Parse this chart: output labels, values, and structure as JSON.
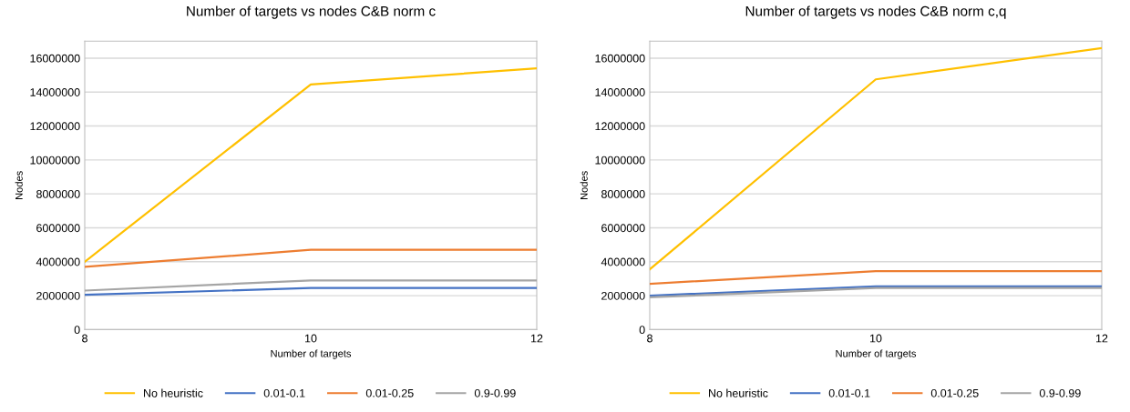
{
  "chart_data": [
    {
      "type": "line",
      "title": "Number of targets vs nodes C&B norm c",
      "xlabel": "Number of targets",
      "ylabel": "Nodes",
      "x": [
        8,
        10,
        12
      ],
      "xlim": [
        8,
        12
      ],
      "xticks": [
        8,
        10,
        12
      ],
      "ylim": [
        0,
        17000000
      ],
      "yticks": [
        0,
        2000000,
        4000000,
        6000000,
        8000000,
        10000000,
        12000000,
        14000000,
        16000000
      ],
      "grid": "y",
      "legend": "bottom",
      "marker": "none",
      "series": [
        {
          "name": "No heuristic",
          "color": "#ffc000",
          "values": [
            4000000,
            14450000,
            15400000
          ]
        },
        {
          "name": "0.01-0.1",
          "color": "#4472c4",
          "values": [
            2050000,
            2450000,
            2450000
          ]
        },
        {
          "name": "0.01-0.25",
          "color": "#ed7d31",
          "values": [
            3700000,
            4700000,
            4700000
          ]
        },
        {
          "name": "0.9-0.99",
          "color": "#a5a5a5",
          "values": [
            2300000,
            2900000,
            2900000
          ]
        }
      ]
    },
    {
      "type": "line",
      "title": "Number of targets vs nodes C&B norm c,q",
      "xlabel": "Number of targets",
      "ylabel": "Nodes",
      "x": [
        8,
        10,
        12
      ],
      "xlim": [
        8,
        12
      ],
      "xticks": [
        8,
        10,
        12
      ],
      "ylim": [
        0,
        17000000
      ],
      "yticks": [
        0,
        2000000,
        4000000,
        6000000,
        8000000,
        10000000,
        12000000,
        14000000,
        16000000
      ],
      "grid": "y",
      "legend": "bottom",
      "marker": "none",
      "series": [
        {
          "name": "No heuristic",
          "color": "#ffc000",
          "values": [
            3550000,
            14750000,
            16600000
          ]
        },
        {
          "name": "0.01-0.1",
          "color": "#4472c4",
          "values": [
            2000000,
            2550000,
            2550000
          ]
        },
        {
          "name": "0.01-0.25",
          "color": "#ed7d31",
          "values": [
            2700000,
            3450000,
            3450000
          ]
        },
        {
          "name": "0.9-0.99",
          "color": "#a5a5a5",
          "values": [
            1900000,
            2450000,
            2450000
          ]
        }
      ]
    }
  ]
}
